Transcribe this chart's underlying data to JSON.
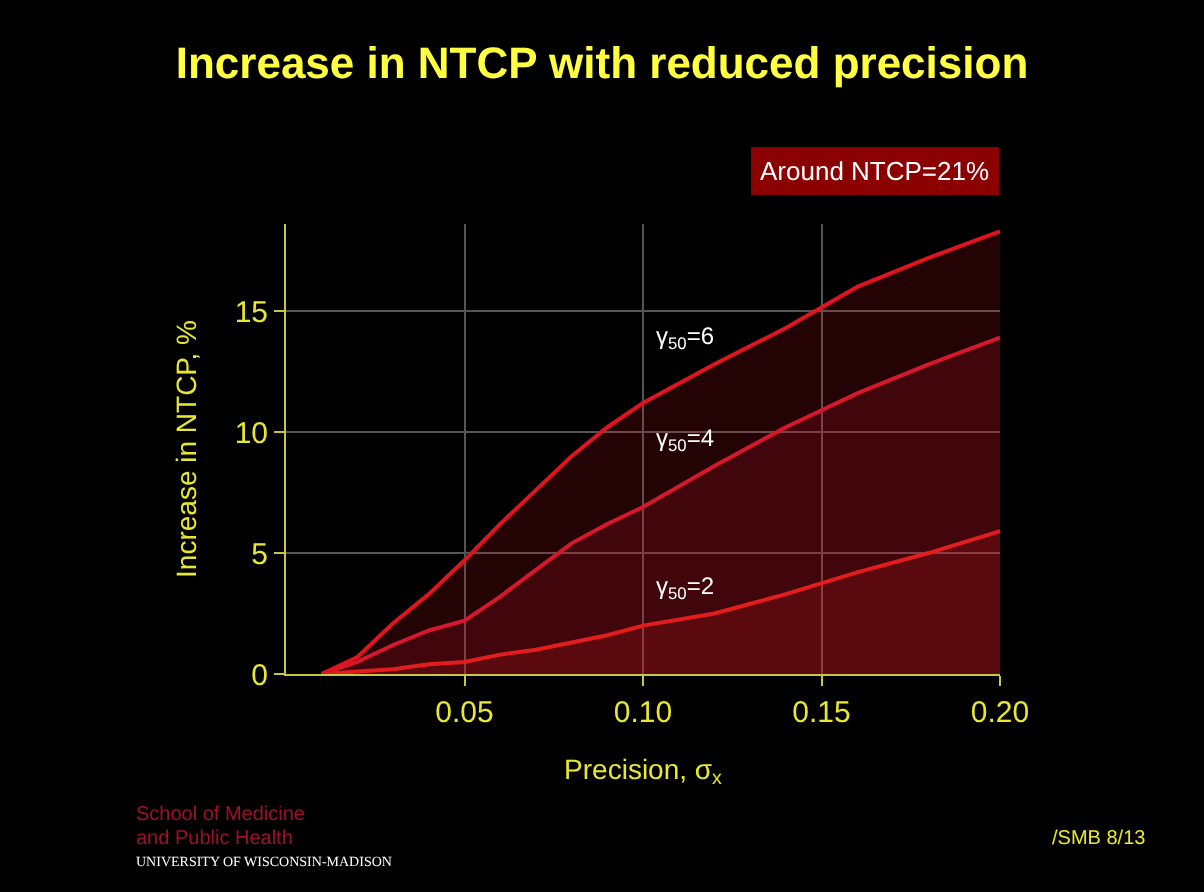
{
  "chart_data": {
    "type": "area",
    "title": "Increase in NTCP with reduced precision",
    "xlabel": "Precision, σ$_{x}$",
    "ylabel": "Increase in NTCP, %",
    "x": [
      0.01,
      0.02,
      0.03,
      0.04,
      0.05,
      0.06,
      0.07,
      0.08,
      0.09,
      0.1,
      0.12,
      0.14,
      0.16,
      0.18,
      0.2
    ],
    "series": [
      {
        "name": "γ$_{50}$=6",
        "color": "#e0141e",
        "values": [
          0,
          0.7,
          2.1,
          3.3,
          4.7,
          6.2,
          7.6,
          9.0,
          10.2,
          11.2,
          12.8,
          14.3,
          16.0,
          17.2,
          18.3
        ]
      },
      {
        "name": "γ$_{50}$=4",
        "color": "#d41830",
        "values": [
          0,
          0.5,
          1.2,
          1.8,
          2.2,
          3.2,
          4.3,
          5.4,
          6.2,
          6.9,
          8.6,
          10.2,
          11.6,
          12.8,
          13.9
        ]
      },
      {
        "name": "γ$_{50}$=2",
        "color": "#e8201a",
        "values": [
          0,
          0.1,
          0.2,
          0.4,
          0.5,
          0.8,
          1.0,
          1.3,
          1.6,
          2.0,
          2.5,
          3.3,
          4.2,
          5.0,
          5.9
        ]
      }
    ],
    "xlim": [
      0,
      0.2
    ],
    "xticks": [
      0.05,
      {
        "value": 0.1,
        "label": "0.10"
      },
      0.15,
      {
        "value": 0.2,
        "label": "0.20"
      }
    ],
    "ylim": [
      0,
      18.6
    ],
    "yticks": [
      0,
      5,
      10,
      15
    ],
    "grid": true,
    "legend": false,
    "marker": "none",
    "line_style": "solid",
    "annotations": [
      "Around NTCP=21%",
      "School of Medicine",
      "and Public Health",
      "UNIVERSITY OF WISCONSIN-MADISON",
      "/SMB 8/13"
    ]
  }
}
